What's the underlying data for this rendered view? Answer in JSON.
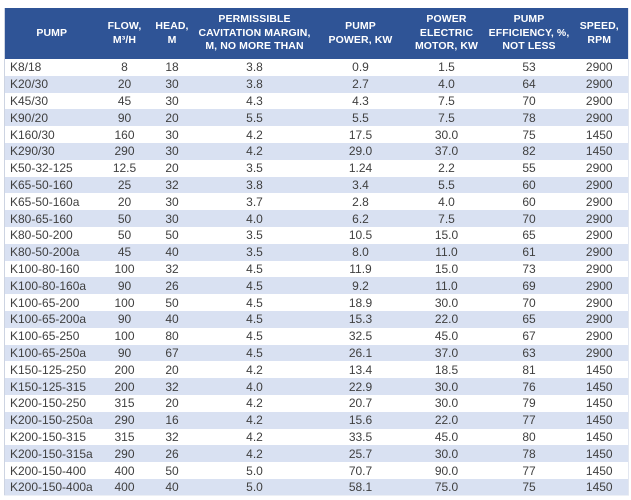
{
  "colors": {
    "header_bg": "#2F5496",
    "header_text": "#FFFFFF",
    "stripe_bg": "#D9E1F2",
    "row_bg": "#FFFFFF",
    "body_text": "#3F3F3F"
  },
  "table": {
    "columns": [
      "PUMP",
      "FLOW,\nM³/H",
      "HEAD,\nM",
      "PERMISSIBLE\nCAVITATION MARGIN,\nM, NO MORE THAN",
      "PUMP\nPOWER, KW",
      "POWER\nELECTRIC\nMOTOR, KW",
      "PUMP\nEFFICIENCY, %,\nNOT LESS",
      "SPEED,\nRPM"
    ],
    "rows": [
      [
        "K8/18",
        "8",
        "18",
        "3.8",
        "0.9",
        "1.5",
        "53",
        "2900"
      ],
      [
        "K20/30",
        "20",
        "30",
        "3.8",
        "2.7",
        "4.0",
        "64",
        "2900"
      ],
      [
        "K45/30",
        "45",
        "30",
        "4.3",
        "4.3",
        "7.5",
        "70",
        "2900"
      ],
      [
        "K90/20",
        "90",
        "20",
        "5.5",
        "5.5",
        "7.5",
        "78",
        "2900"
      ],
      [
        "K160/30",
        "160",
        "30",
        "4.2",
        "17.5",
        "30.0",
        "75",
        "1450"
      ],
      [
        "K290/30",
        "290",
        "30",
        "4.2",
        "29.0",
        "37.0",
        "82",
        "1450"
      ],
      [
        "K50-32-125",
        "12.5",
        "20",
        "3.5",
        "1.24",
        "2.2",
        "55",
        "2900"
      ],
      [
        "K65-50-160",
        "25",
        "32",
        "3.8",
        "3.4",
        "5.5",
        "60",
        "2900"
      ],
      [
        "K65-50-160a",
        "20",
        "30",
        "3.7",
        "2.8",
        "4.0",
        "60",
        "2900"
      ],
      [
        "K80-65-160",
        "50",
        "30",
        "4.0",
        "6.2",
        "7.5",
        "70",
        "2900"
      ],
      [
        "K80-50-200",
        "50",
        "50",
        "3.5",
        "10.5",
        "15.0",
        "65",
        "2900"
      ],
      [
        "K80-50-200a",
        "45",
        "40",
        "3.5",
        "8.0",
        "11.0",
        "61",
        "2900"
      ],
      [
        "K100-80-160",
        "100",
        "32",
        "4.5",
        "11.9",
        "15.0",
        "73",
        "2900"
      ],
      [
        "K100-80-160a",
        "90",
        "26",
        "4.5",
        "9.2",
        "11.0",
        "69",
        "2900"
      ],
      [
        "K100-65-200",
        "100",
        "50",
        "4.5",
        "18.9",
        "30.0",
        "70",
        "2900"
      ],
      [
        "K100-65-200a",
        "90",
        "40",
        "4.5",
        "15.3",
        "22.0",
        "65",
        "2900"
      ],
      [
        "K100-65-250",
        "100",
        "80",
        "4.5",
        "32.5",
        "45.0",
        "67",
        "2900"
      ],
      [
        "K100-65-250a",
        "90",
        "67",
        "4.5",
        "26.1",
        "37.0",
        "63",
        "2900"
      ],
      [
        "K150-125-250",
        "200",
        "20",
        "4.2",
        "13.4",
        "18.5",
        "81",
        "1450"
      ],
      [
        "K150-125-315",
        "200",
        "32",
        "4.0",
        "22.9",
        "30.0",
        "76",
        "1450"
      ],
      [
        "K200-150-250",
        "315",
        "20",
        "4.2",
        "20.7",
        "30.0",
        "79",
        "1450"
      ],
      [
        "K200-150-250a",
        "290",
        "16",
        "4.2",
        "15.6",
        "22.0",
        "77",
        "1450"
      ],
      [
        "K200-150-315",
        "315",
        "32",
        "4.2",
        "33.5",
        "45.0",
        "80",
        "1450"
      ],
      [
        "K200-150-315a",
        "290",
        "26",
        "4.2",
        "25.7",
        "30.0",
        "78",
        "1450"
      ],
      [
        "K200-150-400",
        "400",
        "50",
        "5.0",
        "70.7",
        "90.0",
        "77",
        "1450"
      ],
      [
        "K200-150-400a",
        "400",
        "40",
        "5.0",
        "58.1",
        "75.0",
        "75",
        "1450"
      ]
    ]
  }
}
